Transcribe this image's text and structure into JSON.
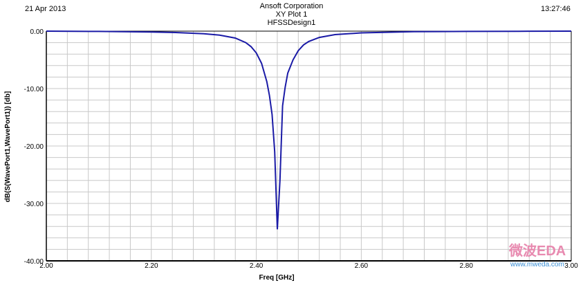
{
  "header": {
    "date": "21 Apr 2013",
    "time": "13:27:46",
    "company": "Ansoft Corporation",
    "plot_name": "XY Plot 1",
    "design": "HFSSDesign1"
  },
  "watermark": {
    "logo_text": "微波EDA",
    "url": "www.mweda.com"
  },
  "colors": {
    "curve": "#1a1aa6",
    "grid": "#c8c8c8",
    "axis": "#000000"
  },
  "chart_data": {
    "type": "line",
    "title": "XY Plot 1",
    "xlabel": "Freq [GHz]",
    "ylabel": "dB(S(WavePort1,WavePort1)) [db]",
    "xlim": [
      2.0,
      3.0
    ],
    "ylim": [
      -40.0,
      0.0
    ],
    "x_ticks": [
      2.0,
      2.2,
      2.4,
      2.6,
      2.8,
      3.0
    ],
    "x_tick_labels": [
      "2.00",
      "2.20",
      "2.40",
      "2.60",
      "2.80",
      "3.00"
    ],
    "y_ticks": [
      0,
      -10,
      -20,
      -30,
      -40
    ],
    "y_tick_labels": [
      "0.00",
      "-10.00",
      "-20.00",
      "-30.00",
      "-40.00"
    ],
    "grid": true,
    "series": [
      {
        "x": [
          2.0,
          2.1,
          2.2,
          2.25,
          2.3,
          2.33,
          2.36,
          2.38,
          2.39,
          2.4,
          2.41,
          2.42,
          2.425,
          2.43,
          2.435,
          2.44,
          2.445,
          2.45,
          2.455,
          2.46,
          2.47,
          2.48,
          2.49,
          2.5,
          2.52,
          2.55,
          2.6,
          2.7,
          2.8,
          2.9,
          3.0
        ],
        "y": [
          0.0,
          -0.05,
          -0.15,
          -0.25,
          -0.45,
          -0.7,
          -1.2,
          -2.0,
          -2.7,
          -3.8,
          -5.6,
          -8.8,
          -11.2,
          -14.5,
          -21.0,
          -34.5,
          -26.0,
          -13.0,
          -9.8,
          -7.3,
          -5.0,
          -3.4,
          -2.4,
          -1.8,
          -1.1,
          -0.6,
          -0.3,
          -0.1,
          -0.05,
          -0.02,
          0.0
        ]
      }
    ]
  }
}
